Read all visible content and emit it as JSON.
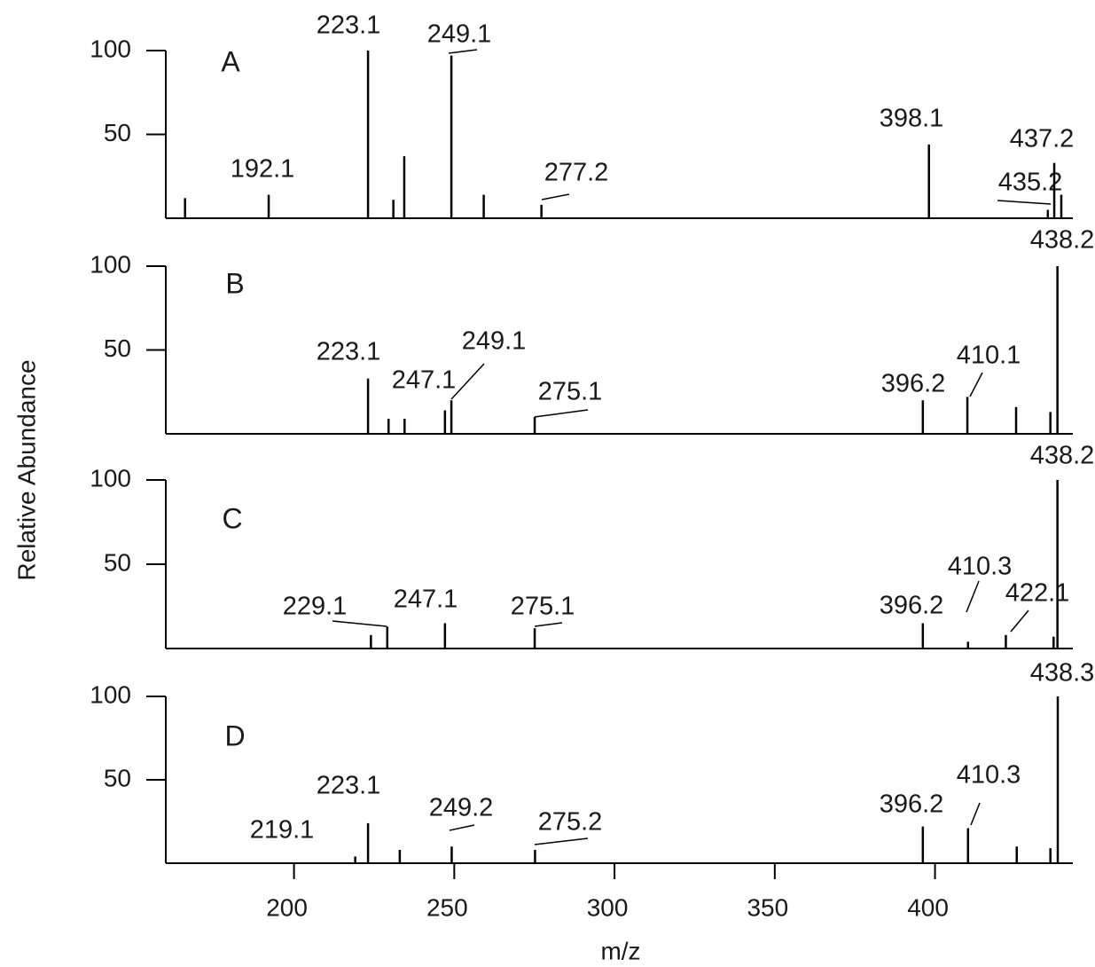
{
  "ylabel": "Relative Abundance",
  "chart_data": [
    {
      "type": "bar",
      "panel": "A",
      "color": "#000000",
      "xlim": [
        160,
        443
      ],
      "ylim": [
        0,
        100
      ],
      "yticks": [
        50,
        100
      ],
      "x": [
        192.1,
        223.1,
        249.1,
        277.2,
        398.1,
        435.2,
        437.2
      ],
      "values": [
        14,
        100,
        97,
        8,
        44,
        5,
        33
      ],
      "minor_x": [
        166,
        231,
        234.4,
        259.2,
        439.4
      ],
      "minor_values": [
        12,
        11,
        37,
        14,
        14
      ]
    },
    {
      "type": "bar",
      "panel": "B",
      "color": "#000000",
      "xlim": [
        160,
        443
      ],
      "ylim": [
        0,
        100
      ],
      "yticks": [
        50,
        100
      ],
      "x": [
        438.2,
        223.1,
        247.1,
        249.1,
        275.1,
        396.2,
        410.1
      ],
      "values": [
        100,
        33,
        14,
        20,
        10,
        20,
        22
      ],
      "minor_x": [
        229.5,
        234.5,
        425.3,
        436
      ],
      "minor_values": [
        9,
        9,
        16,
        13
      ]
    },
    {
      "type": "bar",
      "panel": "C",
      "color": "#000000",
      "xlim": [
        160,
        443
      ],
      "ylim": [
        0,
        100
      ],
      "yticks": [
        50,
        100
      ],
      "x": [
        438.2,
        229.1,
        247.1,
        275.1,
        396.2,
        410.3,
        422.1
      ],
      "values": [
        100,
        13,
        15,
        12,
        15,
        4,
        8
      ],
      "minor_x": [
        224,
        437
      ],
      "minor_values": [
        8,
        7
      ]
    },
    {
      "type": "bar",
      "panel": "D",
      "color": "#000000",
      "xlim": [
        160,
        443
      ],
      "ylim": [
        0,
        100
      ],
      "yticks": [
        50,
        100
      ],
      "x": [
        438.3,
        219.1,
        223.1,
        249.2,
        275.2,
        396.2,
        410.3
      ],
      "values": [
        100,
        4,
        24,
        10,
        8,
        22,
        21
      ],
      "minor_x": [
        233,
        425.5,
        436
      ],
      "minor_values": [
        8,
        10,
        9
      ],
      "xticks": [
        200,
        250,
        300,
        350,
        400
      ],
      "xlabel": "m/z"
    }
  ]
}
